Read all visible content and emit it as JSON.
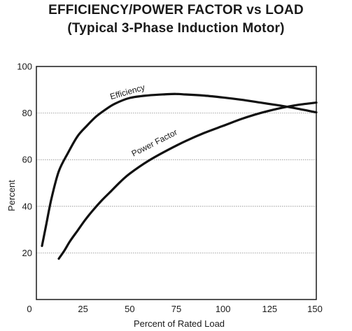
{
  "title": "EFFICIENCY/POWER FACTOR vs LOAD",
  "subtitle": "(Typical 3-Phase Induction Motor)",
  "chart_data": {
    "type": "line",
    "title": "EFFICIENCY/POWER FACTOR vs LOAD",
    "subtitle": "(Typical 3-Phase Induction Motor)",
    "xlabel": "Percent of Rated Load",
    "ylabel": "Percent",
    "xlim": [
      0,
      150
    ],
    "ylim": [
      0,
      100
    ],
    "x_ticks": [
      0,
      25,
      50,
      75,
      100,
      125,
      150
    ],
    "x_tick_labels": [
      "0",
      "25",
      "50",
      "75",
      "100",
      "125",
      "150"
    ],
    "y_ticks": [
      20,
      40,
      60,
      80,
      100
    ],
    "y_tick_labels": [
      "20",
      "40",
      "60",
      "80",
      "100"
    ],
    "grid": true,
    "legend": "none",
    "series": [
      {
        "name": "Efficiency",
        "x": [
          3,
          5,
          8,
          12,
          17,
          22,
          27,
          32,
          37,
          42,
          50,
          60,
          70,
          75,
          80,
          90,
          100,
          110,
          120,
          130,
          140,
          150
        ],
        "values": [
          23,
          31,
          43,
          55,
          63,
          70,
          74.5,
          78.5,
          81.5,
          84,
          86.5,
          87.6,
          88.1,
          88.2,
          88,
          87.5,
          86.7,
          85.7,
          84.5,
          83.3,
          81.9,
          80.3
        ]
      },
      {
        "name": "Power Factor",
        "x": [
          12,
          15,
          18,
          22,
          26,
          30,
          35,
          40,
          45,
          50,
          60,
          70,
          80,
          90,
          100,
          110,
          120,
          130,
          140,
          150
        ],
        "values": [
          17.5,
          21,
          25,
          29.5,
          34,
          38,
          42.5,
          46.5,
          50.5,
          54,
          59.5,
          64,
          68,
          71.5,
          74.5,
          77.5,
          80,
          82,
          83.5,
          84.5
        ]
      }
    ],
    "annotations": [
      {
        "text": "Efficiency",
        "series": "Efficiency"
      },
      {
        "text": "Power Factor",
        "series": "Power Factor"
      }
    ]
  }
}
